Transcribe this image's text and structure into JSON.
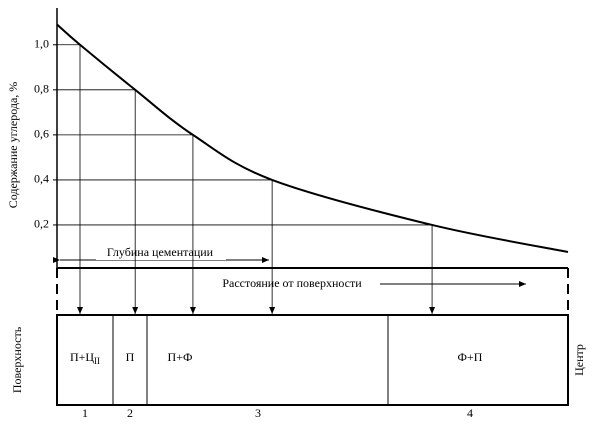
{
  "chart_data": {
    "type": "line",
    "ylabel": "Содержание углерода, %",
    "x": [
      0,
      4.5,
      15.3,
      26.6,
      42.1,
      73.4,
      100
    ],
    "xlim": [
      0,
      100
    ],
    "series": [
      {
        "color": "#000000",
        "values": [
          1.09,
          1.0,
          0.8,
          0.6,
          0.4,
          0.2,
          0.08
        ]
      }
    ],
    "ylim": [
      0,
      1.15
    ],
    "yticks": [
      {
        "value": 0.2,
        "label": "0,2"
      },
      {
        "value": 0.4,
        "label": "0,4"
      },
      {
        "value": 0.6,
        "label": "0,6"
      },
      {
        "value": 0.8,
        "label": "0,8"
      },
      {
        "value": 1.0,
        "label": "1,0"
      }
    ],
    "depth_label": "Глубина цементации",
    "distance_label": "Расстояние от поверхности",
    "surface_label": "Поверхность",
    "center_label": "Центр",
    "zones": [
      {
        "label": "П+Ц",
        "subscript": "II",
        "number": "1"
      },
      {
        "label": "П",
        "number": "2"
      },
      {
        "label": "П+Ф",
        "number": "3"
      },
      {
        "label": "Ф+П",
        "number": "4"
      }
    ]
  }
}
